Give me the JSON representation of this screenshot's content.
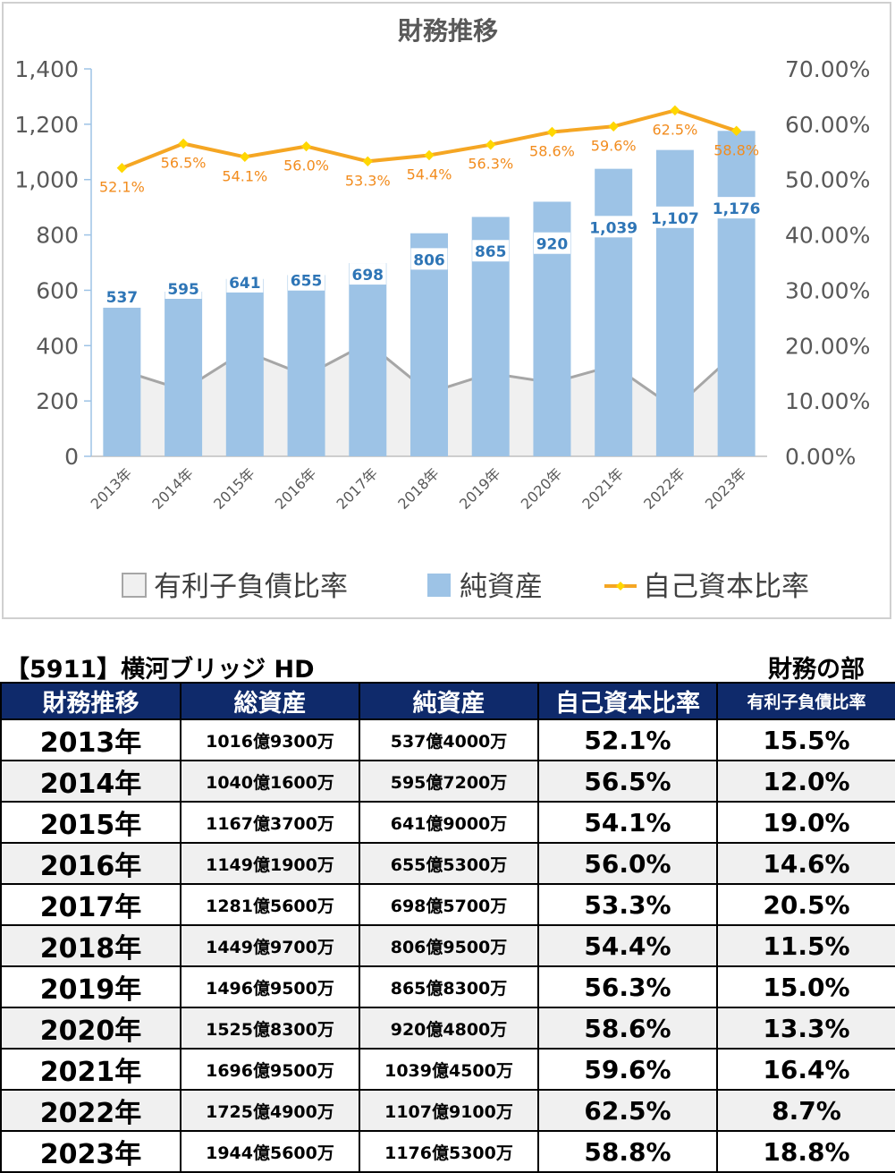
{
  "chart_data": {
    "type": "bar",
    "title": "財務推移",
    "categories": [
      "2013年",
      "2014年",
      "2015年",
      "2016年",
      "2017年",
      "2018年",
      "2019年",
      "2020年",
      "2021年",
      "2022年",
      "2023年"
    ],
    "ylim": [
      0,
      1400
    ],
    "y_ticks": [
      "0",
      "200",
      "400",
      "600",
      "800",
      "1,000",
      "1,200",
      "1,400"
    ],
    "y2lim": [
      0,
      0.7
    ],
    "y2_ticks": [
      "0.00%",
      "10.00%",
      "20.00%",
      "30.00%",
      "40.00%",
      "50.00%",
      "60.00%",
      "70.00%"
    ],
    "grid": false,
    "legend_position": "bottom",
    "series": [
      {
        "name": "有利子負債比率",
        "type": "area",
        "axis": "secondary",
        "values": [
          0.155,
          0.12,
          0.19,
          0.146,
          0.205,
          0.115,
          0.15,
          0.133,
          0.164,
          0.087,
          0.188
        ],
        "color": "#a6a6a6",
        "fill": "#f0f0f0"
      },
      {
        "name": "純資産",
        "type": "bar",
        "axis": "primary",
        "values": [
          537,
          595,
          641,
          655,
          698,
          806,
          865,
          920,
          1039,
          1107,
          1176
        ],
        "labels": [
          "537",
          "595",
          "641",
          "655",
          "698",
          "806",
          "865",
          "920",
          "1,039",
          "1,107",
          "1,176"
        ],
        "color": "#9dc3e6",
        "label_color": "#2e75b6"
      },
      {
        "name": "自己資本比率",
        "type": "line",
        "axis": "secondary",
        "values": [
          0.521,
          0.565,
          0.541,
          0.56,
          0.533,
          0.544,
          0.563,
          0.586,
          0.596,
          0.625,
          0.588
        ],
        "labels": [
          "52.1%",
          "56.5%",
          "54.1%",
          "56.0%",
          "53.3%",
          "54.4%",
          "56.3%",
          "58.6%",
          "59.6%",
          "62.5%",
          "58.8%"
        ],
        "color": "#f5a623",
        "marker_color": "#ffd700",
        "label_color": "#f28c1e"
      }
    ]
  },
  "lower": {
    "title": "【5911】横河ブリッジ HD",
    "right_label": "財務の部"
  },
  "table": {
    "headers": [
      "財務推移",
      "総資産",
      "純資産",
      "自己資本比率",
      "有利子負債比率"
    ],
    "header_color": "#0f2a6b",
    "rows": [
      [
        "2013年",
        "1016億9300万",
        "537億4000万",
        "52.1%",
        "15.5%"
      ],
      [
        "2014年",
        "1040億1600万",
        "595億7200万",
        "56.5%",
        "12.0%"
      ],
      [
        "2015年",
        "1167億3700万",
        "641億9000万",
        "54.1%",
        "19.0%"
      ],
      [
        "2016年",
        "1149億1900万",
        "655億5300万",
        "56.0%",
        "14.6%"
      ],
      [
        "2017年",
        "1281億5600万",
        "698億5700万",
        "53.3%",
        "20.5%"
      ],
      [
        "2018年",
        "1449億9700万",
        "806億9500万",
        "54.4%",
        "11.5%"
      ],
      [
        "2019年",
        "1496億9500万",
        "865億8300万",
        "56.3%",
        "15.0%"
      ],
      [
        "2020年",
        "1525億8300万",
        "920億4800万",
        "58.6%",
        "13.3%"
      ],
      [
        "2021年",
        "1696億9500万",
        "1039億4500万",
        "59.6%",
        "16.4%"
      ],
      [
        "2022年",
        "1725億4900万",
        "1107億9100万",
        "62.5%",
        "8.7%"
      ],
      [
        "2023年",
        "1944億5600万",
        "1176億5300万",
        "58.8%",
        "18.8%"
      ]
    ]
  }
}
